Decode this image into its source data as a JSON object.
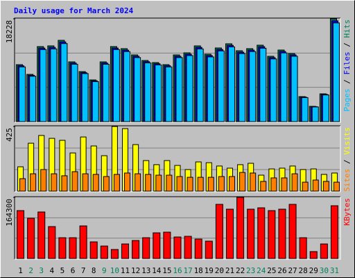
{
  "chart_data": {
    "type": "bar",
    "title": "Daily usage for March 2024",
    "categories": [
      "1",
      "2",
      "3",
      "4",
      "5",
      "6",
      "7",
      "8",
      "9",
      "10",
      "11",
      "12",
      "13",
      "14",
      "15",
      "16",
      "17",
      "18",
      "19",
      "20",
      "21",
      "22",
      "23",
      "24",
      "25",
      "26",
      "27",
      "28",
      "29",
      "30",
      "31"
    ],
    "weekend": [
      false,
      true,
      true,
      false,
      false,
      false,
      false,
      false,
      true,
      true,
      false,
      false,
      false,
      false,
      false,
      true,
      true,
      false,
      false,
      false,
      false,
      false,
      true,
      true,
      false,
      false,
      false,
      false,
      false,
      true,
      true
    ],
    "label_color": "#000000",
    "weekend_color": "#00805c",
    "title_color": "#0000ff",
    "legend_separator": " / ",
    "grid_divisions": 3,
    "panels": [
      {
        "ylim": [
          0,
          18228
        ],
        "yticks": [
          18228
        ],
        "series": [
          {
            "name": "Hits",
            "color": "#00805c",
            "values": [
              10099,
              8375,
              13301,
              13424,
              14410,
              10592,
              8868,
              7390,
              10592,
              13301,
              12932,
              11823,
              10838,
              10469,
              10099,
              11823,
              12193,
              13424,
              11947,
              13055,
              13794,
              12562,
              12932,
              13548,
              11577,
              12685,
              12070,
              4434,
              2710,
              4926,
              18228
            ]
          },
          {
            "name": "Files",
            "color": "#0000ff",
            "values": [
              9897,
              8208,
              13035,
              13156,
              14122,
              10380,
              8691,
              7242,
              10380,
              13035,
              12673,
              11587,
              10621,
              10260,
              9897,
              11587,
              11949,
              13156,
              11708,
              12794,
              13518,
              12311,
              12673,
              13277,
              11345,
              12431,
              11829,
              4345,
              2656,
              4827,
              17863
            ]
          },
          {
            "name": "Pages",
            "color": "#00c0ff",
            "values": [
              9695,
              8040,
              12769,
              12887,
              13834,
              10168,
              8513,
              7094,
              10168,
              12769,
              12415,
              11350,
              10404,
              10050,
              9695,
              11350,
              11705,
              12887,
              11469,
              12533,
              13242,
              12060,
              12415,
              13006,
              11114,
              12178,
              11587,
              4257,
              2602,
              4729,
              17499
            ]
          }
        ]
      },
      {
        "ylim": [
          0,
          425
        ],
        "yticks": [
          425
        ],
        "series": [
          {
            "name": "Visits",
            "color": "#ffff00",
            "values": [
              160,
              315,
              366,
              347,
              334,
              251,
              356,
              297,
              233,
              425,
              411,
              306,
              201,
              174,
              201,
              169,
              142,
              192,
              187,
              165,
              151,
              174,
              183,
              105,
              146,
              151,
              165,
              142,
              146,
              110,
              119
            ]
          },
          {
            "name": "Sites",
            "color": "#ff8000",
            "values": [
              82,
              114,
              142,
              114,
              101,
              128,
              114,
              110,
              96,
              110,
              119,
              114,
              110,
              105,
              105,
              96,
              91,
              91,
              91,
              96,
              96,
              123,
              119,
              64,
              87,
              87,
              114,
              59,
              73,
              64,
              59
            ]
          }
        ]
      },
      {
        "ylim": [
          0,
          164300
        ],
        "yticks": [
          164300
        ],
        "series": [
          {
            "name": "KBytes",
            "color": "#ff0000",
            "values": [
              128800,
              108300,
              125100,
              85900,
              56000,
              56000,
              87700,
              44800,
              33600,
              24300,
              39200,
              48500,
              56000,
              69100,
              70900,
              57900,
              59700,
              52300,
              46700,
              145600,
              132600,
              164300,
              132600,
              136300,
              128800,
              132600,
              145600,
              56000,
              18700,
              39200,
              141900
            ]
          }
        ]
      }
    ]
  }
}
